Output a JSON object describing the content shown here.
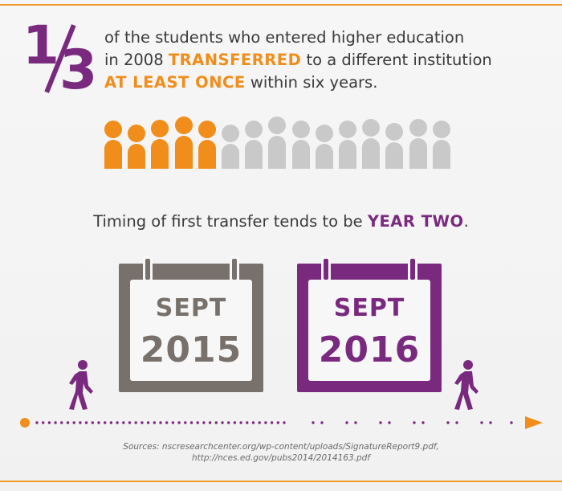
{
  "fraction": {
    "numerator": "1",
    "denominator": "3"
  },
  "headline": {
    "line1": "of the students who entered higher education",
    "line2_a": "in 2008 ",
    "line2_em": "TRANSFERRED",
    "line2_b": " to a different institution",
    "line3_em": "AT LEAST ONCE",
    "line3_b": " within six years."
  },
  "people": {
    "total": 15,
    "transferred": 5
  },
  "timing": {
    "text": "Timing of first transfer tends to be ",
    "em": "YEAR TWO",
    "end": "."
  },
  "calendars": [
    {
      "month": "SEPT",
      "year": "2015"
    },
    {
      "month": "SEPT",
      "year": "2016"
    }
  ],
  "sources": {
    "line1": "Sources: nscresearchcenter.org/wp-content/uploads/SignatureReport9.pdf,",
    "line2": "http://nces.ed.gov/pubs2014/2014163.pdf"
  },
  "colors": {
    "orange": "#f08d1b",
    "purple": "#7a2a7e",
    "gray_person": "#c9c9c9",
    "gray_calendar": "#77706b"
  },
  "icons": [
    "person-icon",
    "calendar-icon",
    "walking-person-icon",
    "arrow-right-icon"
  ]
}
